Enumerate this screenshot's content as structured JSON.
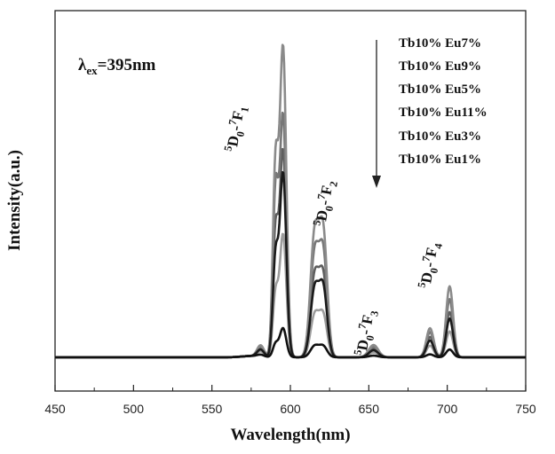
{
  "chart_data": {
    "type": "line",
    "title": "",
    "xlabel": "Wavelength(nm)",
    "ylabel": "Intensity(a.u.)",
    "xlim": [
      450,
      750
    ],
    "ylim": [
      0,
      100
    ],
    "x_ticks": [
      450,
      500,
      550,
      600,
      650,
      700,
      750
    ],
    "x_tick_labels": [
      "450",
      "500",
      "550",
      "600",
      "650",
      "700",
      "750"
    ],
    "excitation_label": {
      "text": "λex=395nm",
      "lambda": "λ",
      "subscript": "ex",
      "value": "=395nm"
    },
    "annotations": [
      {
        "id": "5D0-7F1",
        "text": "5D0-7F1",
        "parts": [
          "5",
          "D",
          "0",
          "-",
          "7",
          "F",
          "1"
        ],
        "wavelength": 592
      },
      {
        "id": "5D0-7F2",
        "text": "5D0-7F2",
        "parts": [
          "5",
          "D",
          "0",
          "-",
          "7",
          "F",
          "2"
        ],
        "wavelength": 617
      },
      {
        "id": "5D0-7F3",
        "text": "5D0-7F3",
        "parts": [
          "5",
          "D",
          "0",
          "-",
          "7",
          "F",
          "3"
        ],
        "wavelength": 652
      },
      {
        "id": "5D0-7F4",
        "text": "5D0-7F4",
        "parts": [
          "5",
          "D",
          "0",
          "-",
          "7",
          "F",
          "4"
        ],
        "wavelength": 700
      }
    ],
    "legend": {
      "entries": [
        "Tb10% Eu7%",
        "Tb10% Eu9%",
        "Tb10% Eu5%",
        "Tb10% Eu11%",
        "Tb10% Eu3%",
        "Tb10% Eu1%"
      ],
      "arrow_direction": "down",
      "placement": "top-right"
    },
    "series": [
      {
        "name": "Tb10% Eu7%",
        "color": "#8a8a8a",
        "peaks": {
          "p581": 3.5,
          "p590": 58,
          "p595": 96,
          "p615": 38,
          "p620": 37,
          "p653": 3.8,
          "p689": 9,
          "p701": 22
        }
      },
      {
        "name": "Tb10% Eu9%",
        "color": "#777777",
        "peaks": {
          "p581": 3.0,
          "p590": 50,
          "p595": 75,
          "p615": 32,
          "p620": 31,
          "p653": 3.2,
          "p689": 7.8,
          "p701": 18
        }
      },
      {
        "name": "Tb10% Eu5%",
        "color": "#5e5e5e",
        "peaks": {
          "p581": 2.6,
          "p590": 38,
          "p595": 64,
          "p615": 25,
          "p620": 24,
          "p653": 2.6,
          "p689": 6.3,
          "p701": 14
        }
      },
      {
        "name": "Tb10% Eu11%",
        "color": "#1a1a1a",
        "peaks": {
          "p581": 2.2,
          "p590": 30,
          "p595": 57,
          "p615": 21,
          "p620": 20.5,
          "p653": 2.2,
          "p689": 5.2,
          "p701": 12
        }
      },
      {
        "name": "Tb10% Eu3%",
        "color": "#9c9c9c",
        "peaks": {
          "p581": 1.6,
          "p590": 19,
          "p595": 38,
          "p615": 13,
          "p620": 12.5,
          "p653": 1.5,
          "p689": 3.6,
          "p701": 8
        }
      },
      {
        "name": "Tb10% Eu1%",
        "color": "#101010",
        "peaks": {
          "p581": 0.6,
          "p590": 4,
          "p595": 9,
          "p615": 3.5,
          "p620": 3.3,
          "p653": 0.5,
          "p689": 0.9,
          "p701": 2.4
        }
      }
    ],
    "baseline": 2.5,
    "grid": false
  }
}
